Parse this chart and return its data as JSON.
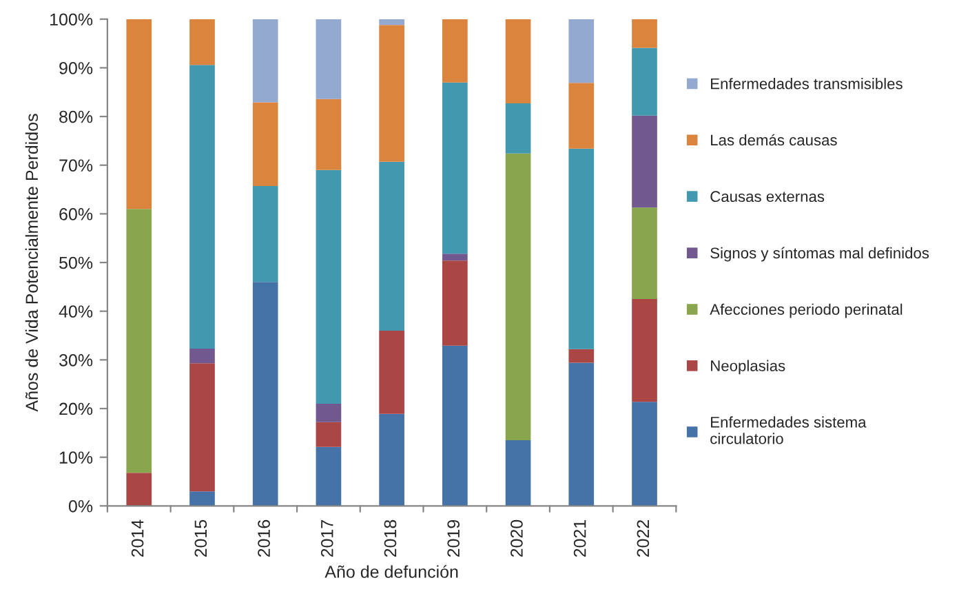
{
  "chart_data": {
    "type": "bar",
    "stacked": true,
    "xlabel": "Año de defunción",
    "ylabel": "Años de Vida Potencialmente Perdidos",
    "categories": [
      "2014",
      "2015",
      "2016",
      "2017",
      "2018",
      "2019",
      "2020",
      "2021",
      "2022"
    ],
    "ylim": [
      0,
      100
    ],
    "yticks": [
      {
        "value": 0,
        "label": "0%"
      },
      {
        "value": 10,
        "label": "10%"
      },
      {
        "value": 20,
        "label": "20%"
      },
      {
        "value": 30,
        "label": "30%"
      },
      {
        "value": 40,
        "label": "40%"
      },
      {
        "value": 50,
        "label": "50%"
      },
      {
        "value": 60,
        "label": "60%"
      },
      {
        "value": 70,
        "label": "70%"
      },
      {
        "value": 80,
        "label": "80%"
      },
      {
        "value": 90,
        "label": "90%"
      },
      {
        "value": 100,
        "label": "100%"
      }
    ],
    "grid": false,
    "legend": "right",
    "series": [
      {
        "name": "Enfermedades sistema\ncirculatorio",
        "color": "#4572a7",
        "values": [
          0,
          3.0,
          46.0,
          12.1,
          18.9,
          32.9,
          13.5,
          29.4,
          21.4
        ]
      },
      {
        "name": "Neoplasias",
        "color": "#aa4643",
        "values": [
          6.8,
          26.3,
          0,
          5.1,
          17.1,
          17.5,
          0,
          2.8,
          21.1
        ]
      },
      {
        "name": "Afecciones periodo perinatal",
        "color": "#89a54e",
        "values": [
          54.2,
          0,
          0,
          0,
          0,
          0,
          58.9,
          0,
          18.8
        ]
      },
      {
        "name": "Signos y síntomas mal definidos",
        "color": "#71588f",
        "values": [
          0,
          3.0,
          0,
          3.8,
          0,
          1.4,
          0,
          0,
          18.9
        ]
      },
      {
        "name": "Causas externas",
        "color": "#4198af",
        "values": [
          0,
          58.3,
          19.7,
          48.0,
          34.7,
          35.2,
          10.3,
          41.2,
          13.9
        ]
      },
      {
        "name": "Las demás causas",
        "color": "#db843d",
        "values": [
          39.0,
          9.4,
          17.2,
          14.6,
          28.1,
          13.0,
          17.3,
          13.5,
          5.9
        ]
      },
      {
        "name": "Enfermedades transmisibles",
        "color": "#93a9cf",
        "values": [
          0,
          0,
          17.1,
          16.4,
          1.2,
          0,
          0,
          13.1,
          0
        ]
      }
    ]
  }
}
